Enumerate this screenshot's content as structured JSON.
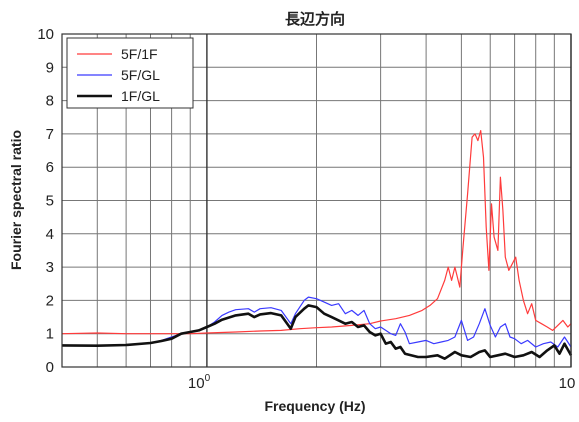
{
  "chart_data": {
    "type": "line",
    "title": "長辺方向",
    "xlabel": "Frequency (Hz)",
    "ylabel": "Fourier spectral ratio",
    "x_scale": "log",
    "xlim": [
      0.4,
      10
    ],
    "ylim": [
      0,
      10
    ],
    "grid": true,
    "legend_position": "top-left",
    "y_ticks": [
      "0",
      "1",
      "2",
      "3",
      "4",
      "5",
      "6",
      "7",
      "8",
      "9",
      "10"
    ],
    "x_tick_labels": {
      "one": {
        "base": "10",
        "exp": "0"
      },
      "ten": "10"
    },
    "series": [
      {
        "name": "5F/1F",
        "color": "#ff3b3b",
        "points": [
          [
            0.4,
            1.0
          ],
          [
            0.5,
            1.02
          ],
          [
            0.6,
            1.0
          ],
          [
            0.7,
            1.0
          ],
          [
            0.8,
            1.0
          ],
          [
            0.9,
            1.0
          ],
          [
            1.0,
            1.02
          ],
          [
            1.2,
            1.05
          ],
          [
            1.4,
            1.08
          ],
          [
            1.6,
            1.1
          ],
          [
            1.8,
            1.15
          ],
          [
            2.0,
            1.18
          ],
          [
            2.2,
            1.2
          ],
          [
            2.5,
            1.25
          ],
          [
            2.8,
            1.3
          ],
          [
            3.0,
            1.38
          ],
          [
            3.3,
            1.45
          ],
          [
            3.6,
            1.55
          ],
          [
            3.9,
            1.7
          ],
          [
            4.1,
            1.85
          ],
          [
            4.3,
            2.05
          ],
          [
            4.5,
            2.6
          ],
          [
            4.6,
            3.0
          ],
          [
            4.7,
            2.6
          ],
          [
            4.8,
            3.0
          ],
          [
            4.95,
            2.4
          ],
          [
            5.05,
            3.6
          ],
          [
            5.2,
            5.2
          ],
          [
            5.35,
            6.9
          ],
          [
            5.45,
            7.0
          ],
          [
            5.55,
            6.8
          ],
          [
            5.65,
            7.1
          ],
          [
            5.75,
            6.3
          ],
          [
            5.85,
            4.2
          ],
          [
            5.95,
            2.9
          ],
          [
            6.05,
            4.9
          ],
          [
            6.15,
            3.9
          ],
          [
            6.3,
            3.5
          ],
          [
            6.4,
            5.7
          ],
          [
            6.5,
            4.7
          ],
          [
            6.6,
            3.3
          ],
          [
            6.75,
            2.9
          ],
          [
            6.9,
            3.1
          ],
          [
            7.05,
            3.3
          ],
          [
            7.2,
            2.6
          ],
          [
            7.4,
            2.0
          ],
          [
            7.6,
            1.6
          ],
          [
            7.8,
            1.9
          ],
          [
            8.0,
            1.4
          ],
          [
            8.3,
            1.3
          ],
          [
            8.6,
            1.2
          ],
          [
            8.9,
            1.1
          ],
          [
            9.2,
            1.25
          ],
          [
            9.5,
            1.4
          ],
          [
            9.8,
            1.2
          ],
          [
            10.0,
            1.3
          ]
        ]
      },
      {
        "name": "5F/GL",
        "color": "#3a3aff",
        "points": [
          [
            0.4,
            0.65
          ],
          [
            0.5,
            0.65
          ],
          [
            0.6,
            0.66
          ],
          [
            0.7,
            0.72
          ],
          [
            0.75,
            0.8
          ],
          [
            0.8,
            0.9
          ],
          [
            0.85,
            1.0
          ],
          [
            0.9,
            1.05
          ],
          [
            0.95,
            1.1
          ],
          [
            1.0,
            1.2
          ],
          [
            1.05,
            1.35
          ],
          [
            1.1,
            1.55
          ],
          [
            1.15,
            1.65
          ],
          [
            1.2,
            1.72
          ],
          [
            1.3,
            1.75
          ],
          [
            1.35,
            1.65
          ],
          [
            1.4,
            1.75
          ],
          [
            1.5,
            1.78
          ],
          [
            1.6,
            1.7
          ],
          [
            1.7,
            1.3
          ],
          [
            1.75,
            1.6
          ],
          [
            1.85,
            2.0
          ],
          [
            1.9,
            2.1
          ],
          [
            2.0,
            2.05
          ],
          [
            2.1,
            1.95
          ],
          [
            2.2,
            1.85
          ],
          [
            2.3,
            1.9
          ],
          [
            2.4,
            1.6
          ],
          [
            2.5,
            1.7
          ],
          [
            2.6,
            1.55
          ],
          [
            2.7,
            1.7
          ],
          [
            2.8,
            1.3
          ],
          [
            2.9,
            1.15
          ],
          [
            3.0,
            1.2
          ],
          [
            3.1,
            1.1
          ],
          [
            3.2,
            1.0
          ],
          [
            3.3,
            0.95
          ],
          [
            3.4,
            1.3
          ],
          [
            3.5,
            1.05
          ],
          [
            3.6,
            0.7
          ],
          [
            3.8,
            0.75
          ],
          [
            4.0,
            0.8
          ],
          [
            4.2,
            0.7
          ],
          [
            4.4,
            0.75
          ],
          [
            4.6,
            0.8
          ],
          [
            4.8,
            0.9
          ],
          [
            5.0,
            1.4
          ],
          [
            5.2,
            0.8
          ],
          [
            5.4,
            0.9
          ],
          [
            5.6,
            1.3
          ],
          [
            5.8,
            1.75
          ],
          [
            6.0,
            1.25
          ],
          [
            6.2,
            0.9
          ],
          [
            6.4,
            1.2
          ],
          [
            6.6,
            1.3
          ],
          [
            6.8,
            0.9
          ],
          [
            7.0,
            0.85
          ],
          [
            7.3,
            0.7
          ],
          [
            7.6,
            0.8
          ],
          [
            8.0,
            0.6
          ],
          [
            8.4,
            0.7
          ],
          [
            8.8,
            0.75
          ],
          [
            9.2,
            0.6
          ],
          [
            9.6,
            0.9
          ],
          [
            10.0,
            0.6
          ]
        ]
      },
      {
        "name": "1F/GL",
        "color": "#111111",
        "points": [
          [
            0.4,
            0.65
          ],
          [
            0.5,
            0.64
          ],
          [
            0.6,
            0.66
          ],
          [
            0.7,
            0.72
          ],
          [
            0.75,
            0.78
          ],
          [
            0.8,
            0.85
          ],
          [
            0.85,
            1.0
          ],
          [
            0.9,
            1.05
          ],
          [
            0.95,
            1.1
          ],
          [
            1.0,
            1.2
          ],
          [
            1.05,
            1.3
          ],
          [
            1.1,
            1.42
          ],
          [
            1.2,
            1.55
          ],
          [
            1.3,
            1.6
          ],
          [
            1.35,
            1.5
          ],
          [
            1.4,
            1.58
          ],
          [
            1.5,
            1.62
          ],
          [
            1.6,
            1.55
          ],
          [
            1.7,
            1.15
          ],
          [
            1.75,
            1.5
          ],
          [
            1.85,
            1.75
          ],
          [
            1.9,
            1.85
          ],
          [
            2.0,
            1.8
          ],
          [
            2.1,
            1.6
          ],
          [
            2.2,
            1.5
          ],
          [
            2.3,
            1.4
          ],
          [
            2.4,
            1.3
          ],
          [
            2.5,
            1.35
          ],
          [
            2.6,
            1.2
          ],
          [
            2.7,
            1.25
          ],
          [
            2.8,
            1.05
          ],
          [
            2.9,
            0.95
          ],
          [
            3.0,
            1.0
          ],
          [
            3.1,
            0.7
          ],
          [
            3.2,
            0.75
          ],
          [
            3.3,
            0.55
          ],
          [
            3.4,
            0.6
          ],
          [
            3.5,
            0.4
          ],
          [
            3.8,
            0.3
          ],
          [
            4.0,
            0.3
          ],
          [
            4.3,
            0.35
          ],
          [
            4.5,
            0.25
          ],
          [
            4.8,
            0.45
          ],
          [
            5.0,
            0.35
          ],
          [
            5.3,
            0.3
          ],
          [
            5.6,
            0.45
          ],
          [
            5.8,
            0.5
          ],
          [
            6.0,
            0.3
          ],
          [
            6.3,
            0.35
          ],
          [
            6.6,
            0.4
          ],
          [
            7.0,
            0.3
          ],
          [
            7.4,
            0.35
          ],
          [
            7.8,
            0.45
          ],
          [
            8.2,
            0.3
          ],
          [
            8.6,
            0.5
          ],
          [
            9.0,
            0.65
          ],
          [
            9.3,
            0.4
          ],
          [
            9.6,
            0.7
          ],
          [
            10.0,
            0.35
          ]
        ]
      }
    ]
  }
}
